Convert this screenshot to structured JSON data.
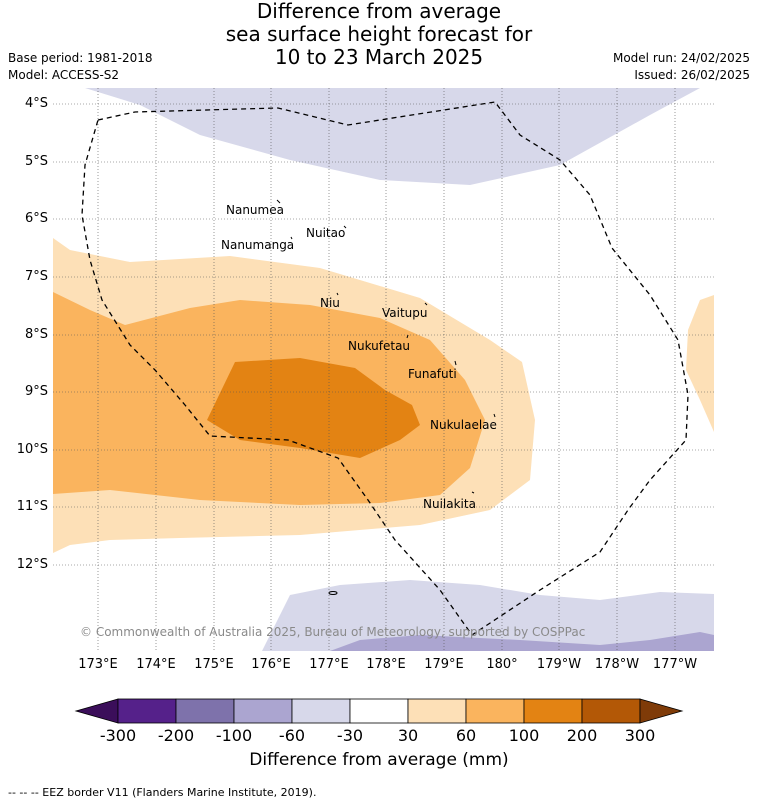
{
  "title": {
    "line1": "Difference from average",
    "line2": "sea surface height forecast for",
    "line3": "10 to 23 March 2025"
  },
  "meta": {
    "base_period": "Base period: 1981-2018",
    "model": "Model: ACCESS-S2",
    "model_run": "Model run: 24/02/2025",
    "issued": "Issued: 26/02/2025"
  },
  "lat_ticks": [
    "4°S",
    "5°S",
    "6°S",
    "7°S",
    "8°S",
    "9°S",
    "10°S",
    "11°S",
    "12°S"
  ],
  "lon_ticks": [
    "173°E",
    "174°E",
    "175°E",
    "176°E",
    "177°E",
    "178°E",
    "179°E",
    "180°",
    "179°W",
    "178°W",
    "177°W"
  ],
  "places": [
    "Nanumea",
    "Nuitao",
    "Nanumanga",
    "Niu",
    "Vaitupu",
    "Nukufetau",
    "Funafuti",
    "Nukulaelae",
    "Nuilakita"
  ],
  "copyright": "© Commonwealth of Australia 2025, Bureau of Meteorology, supported by COSPPac",
  "colorbar": {
    "labels": [
      "-300",
      "-200",
      "-100",
      "-60",
      "-30",
      "30",
      "60",
      "100",
      "200",
      "300"
    ],
    "colors": [
      "#3b0e5a",
      "#55218a",
      "#7e72ab",
      "#aba5d0",
      "#d7d8ea",
      "#ffffff",
      "#fde0b7",
      "#fab45e",
      "#e38313",
      "#b35806",
      "#7f3b08"
    ],
    "title": "Difference from average (mm)"
  },
  "footer": "--  --  -- EEZ border V11 (Flanders Marine Institute, 2019)."
}
